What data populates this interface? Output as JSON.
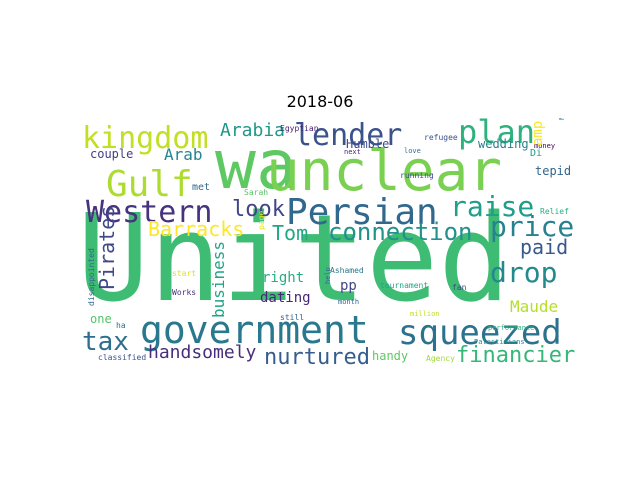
{
  "title": "2018-06",
  "words": [
    {
      "text": "United",
      "color": "#3fbc73"
    },
    {
      "text": "wa",
      "color": "#5ec962"
    },
    {
      "text": "unclear",
      "color": "#7ad151"
    },
    {
      "text": "government",
      "color": "#2a788e"
    },
    {
      "text": "squeezed",
      "color": "#2c728e"
    },
    {
      "text": "Persian",
      "color": "#31688e"
    },
    {
      "text": "kingdom",
      "color": "#c2df23"
    },
    {
      "text": "Gulf",
      "color": "#addc30"
    },
    {
      "text": "Western",
      "color": "#46327e"
    },
    {
      "text": "lender",
      "color": "#3b528b"
    },
    {
      "text": "plan",
      "color": "#2db27d"
    },
    {
      "text": "raise",
      "color": "#1f9e89"
    },
    {
      "text": "connection",
      "color": "#21918c"
    },
    {
      "text": "price",
      "color": "#26828e"
    },
    {
      "text": "drop",
      "color": "#23898e"
    },
    {
      "text": "tax",
      "color": "#2e6e8e"
    },
    {
      "text": "look",
      "color": "#414487"
    },
    {
      "text": "Tom",
      "color": "#22a884"
    },
    {
      "text": "Barracks",
      "color": "#fde725"
    },
    {
      "text": "paid",
      "color": "#38598c"
    },
    {
      "text": "nurtured",
      "color": "#365d8d"
    },
    {
      "text": "financier",
      "color": "#35b779"
    },
    {
      "text": "handsomely",
      "color": "#472d7b"
    },
    {
      "text": "Maude",
      "color": "#b5de2b"
    },
    {
      "text": "Pirates",
      "color": "#3e4989"
    },
    {
      "text": "business",
      "color": "#20a486"
    },
    {
      "text": "Arabia",
      "color": "#1f988b"
    },
    {
      "text": "Arab",
      "color": "#25848e"
    },
    {
      "text": "couple",
      "color": "#433e85"
    },
    {
      "text": "wedding",
      "color": "#277f8e"
    },
    {
      "text": "right",
      "color": "#27ad81"
    },
    {
      "text": "dating",
      "color": "#482576"
    },
    {
      "text": "pp",
      "color": "#3f4788"
    },
    {
      "text": "one",
      "color": "#52c569"
    },
    {
      "text": "tepid",
      "color": "#32658e"
    },
    {
      "text": "handy",
      "color": "#5ec962"
    },
    {
      "text": "Humble",
      "color": "#3d4d8a"
    },
    {
      "text": "Ashamed",
      "color": "#2a788e"
    },
    {
      "text": "met",
      "color": "#31688e"
    },
    {
      "text": "Sarah",
      "color": "#56c667"
    },
    {
      "text": "Egyptian",
      "color": "#482173"
    },
    {
      "text": "refugee",
      "color": "#3b528b"
    },
    {
      "text": "love",
      "color": "#2c738e"
    },
    {
      "text": "next",
      "color": "#482878"
    },
    {
      "text": "money",
      "color": "#440154"
    },
    {
      "text": "Nations",
      "color": "#2a778e"
    },
    {
      "text": "running",
      "color": "#3e4c8a"
    },
    {
      "text": "Relief",
      "color": "#29af7f"
    },
    {
      "text": "disappointed",
      "color": "#31678e"
    },
    {
      "text": "start",
      "color": "#dde318"
    },
    {
      "text": "page",
      "color": "#e5e419"
    },
    {
      "text": "Works",
      "color": "#46307e"
    },
    {
      "text": "help",
      "color": "#2e6d8e"
    },
    {
      "text": "month",
      "color": "#2f6c8e"
    },
    {
      "text": "tournament",
      "color": "#20a386"
    },
    {
      "text": "fan",
      "color": "#3d4e8a"
    },
    {
      "text": "still",
      "color": "#34618d"
    },
    {
      "text": "million",
      "color": "#c0df25"
    },
    {
      "text": "performance",
      "color": "#2eb37c"
    },
    {
      "text": "Palestinians",
      "color": "#218f8d"
    },
    {
      "text": "ha",
      "color": "#2d708e"
    },
    {
      "text": "classified",
      "color": "#3a548c"
    },
    {
      "text": "Agency",
      "color": "#a2da37"
    },
    {
      "text": "amp",
      "color": "#fde725"
    },
    {
      "text": "Di",
      "color": "#1fa187"
    }
  ]
}
